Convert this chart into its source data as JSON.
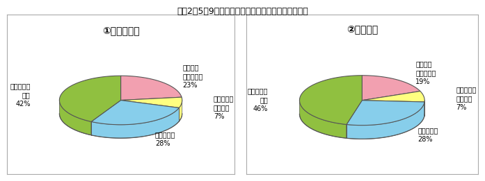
{
  "title": "（図2－5－9）　避難勧告の定量的な発令基準の有無",
  "chart1_title": "①洪水・冠水",
  "chart2_title": "②土砂災害",
  "labels": [
    "市区町村\n全域で導入",
    "要注意地域\nのみ導入",
    "導入計画中",
    "導入の予定\nなし"
  ],
  "values1": [
    23,
    7,
    28,
    42
  ],
  "values2": [
    19,
    7,
    28,
    46
  ],
  "colors": [
    "#F2A0B0",
    "#FFFF80",
    "#87CEEB",
    "#90C040"
  ],
  "pct_labels1": [
    "23%",
    "7%",
    "28%",
    "42%"
  ],
  "pct_labels2": [
    "19%",
    "7%",
    "28%",
    "46%"
  ],
  "edge_color": "#555555",
  "bg_color": "#FFFFFF"
}
